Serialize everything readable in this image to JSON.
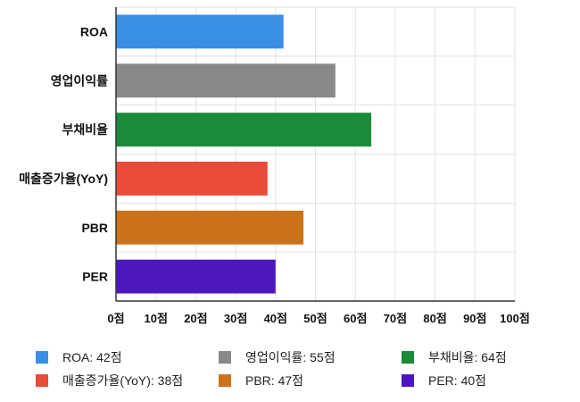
{
  "chart_data": {
    "type": "bar",
    "orientation": "horizontal",
    "categories": [
      "ROA",
      "영업이익률",
      "부채비율",
      "매출증가율(YoY)",
      "PBR",
      "PER"
    ],
    "values": [
      42,
      55,
      64,
      38,
      47,
      40
    ],
    "colors": [
      "#3a8ee6",
      "#888888",
      "#1b8a3a",
      "#ea4c3a",
      "#cc7319",
      "#4d17bd"
    ],
    "xlim": [
      0,
      100
    ],
    "ticks": [
      0,
      10,
      20,
      30,
      40,
      50,
      60,
      70,
      80,
      90,
      100
    ],
    "tick_labels": [
      "0점",
      "10점",
      "20점",
      "30점",
      "40점",
      "50점",
      "60점",
      "70점",
      "80점",
      "90점",
      "100점"
    ],
    "grid": true,
    "legend_position": "bottom",
    "legend": [
      {
        "label": "ROA: 42점",
        "color": "#3a8ee6"
      },
      {
        "label": "영업이익률: 55점",
        "color": "#888888"
      },
      {
        "label": "부채비율: 64점",
        "color": "#1b8a3a"
      },
      {
        "label": "매출증가율(YoY): 38점",
        "color": "#ea4c3a"
      },
      {
        "label": "PBR: 47점",
        "color": "#cc7319"
      },
      {
        "label": "PER: 40점",
        "color": "#4d17bd"
      }
    ]
  }
}
